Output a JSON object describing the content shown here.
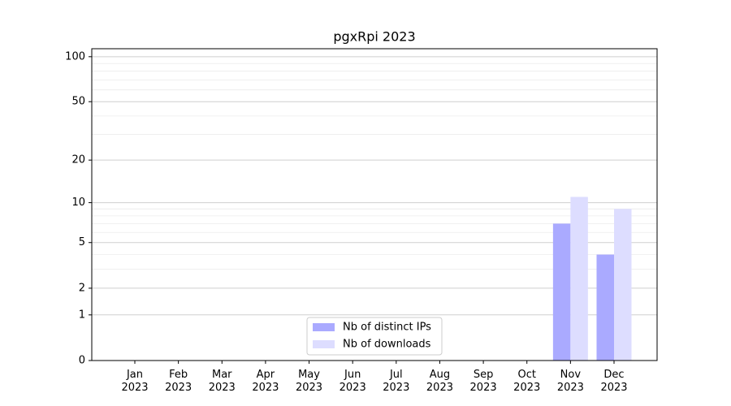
{
  "chart_data": {
    "type": "bar",
    "title": "pgxRpi 2023",
    "categories": [
      "Jan\n2023",
      "Feb\n2023",
      "Mar\n2023",
      "Apr\n2023",
      "May\n2023",
      "Jun\n2023",
      "Jul\n2023",
      "Aug\n2023",
      "Sep\n2023",
      "Oct\n2023",
      "Nov\n2023",
      "Dec\n2023"
    ],
    "series": [
      {
        "name": "Nb of distinct IPs",
        "color": "#aaaaff",
        "values": [
          0,
          0,
          0,
          0,
          0,
          0,
          0,
          0,
          0,
          0,
          7,
          4
        ]
      },
      {
        "name": "Nb of downloads",
        "color": "#ddddff",
        "values": [
          0,
          0,
          0,
          0,
          0,
          0,
          0,
          0,
          0,
          0,
          11,
          9
        ]
      }
    ],
    "yscale": "log1p",
    "ylim": [
      0,
      113
    ],
    "yticks": [
      0,
      1,
      2,
      5,
      10,
      20,
      50,
      100
    ],
    "yminorticks": [
      3,
      4,
      6,
      7,
      8,
      9,
      30,
      40,
      60,
      70,
      80,
      90
    ],
    "grid": true,
    "legend": "lower center"
  }
}
